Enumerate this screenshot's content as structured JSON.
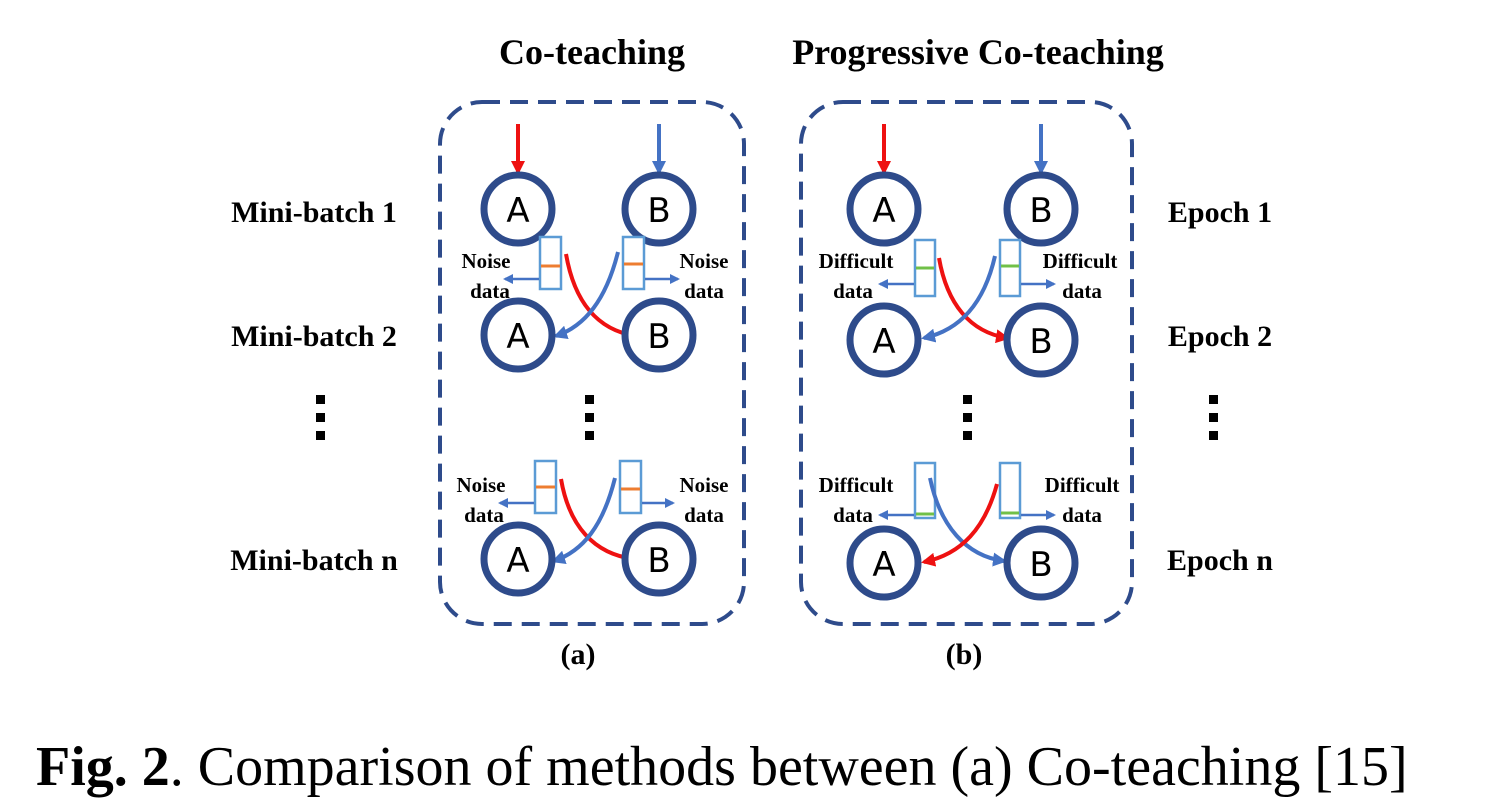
{
  "titles": {
    "left": "Co-teaching",
    "right": "Progressive Co-teaching"
  },
  "row_labels_left": [
    "Mini-batch 1",
    "Mini-batch 2",
    "Mini-batch n"
  ],
  "row_labels_right": [
    "Epoch 1",
    "Epoch 2",
    "Epoch n"
  ],
  "node_labels": {
    "a": "A",
    "b": "B"
  },
  "panel_a": {
    "label": "(a)",
    "side_label_1": "Noise",
    "side_label_2": "data"
  },
  "panel_b": {
    "label": "(b)",
    "side_label_1": "Difficult",
    "side_label_2": "data"
  },
  "caption": {
    "bold": "Fig. 2",
    "rest": ". Comparison of methods between (a) Co-teaching [15]"
  },
  "colors": {
    "node_stroke": "#2e4b8b",
    "panel_border": "#2e4b8b",
    "red_arrow": "#ee1111",
    "blue_arrow": "#4472c4",
    "bar_stroke": "#5b9bd5",
    "noise_mark": "#ed7d31",
    "difficult_mark": "#70c048"
  }
}
